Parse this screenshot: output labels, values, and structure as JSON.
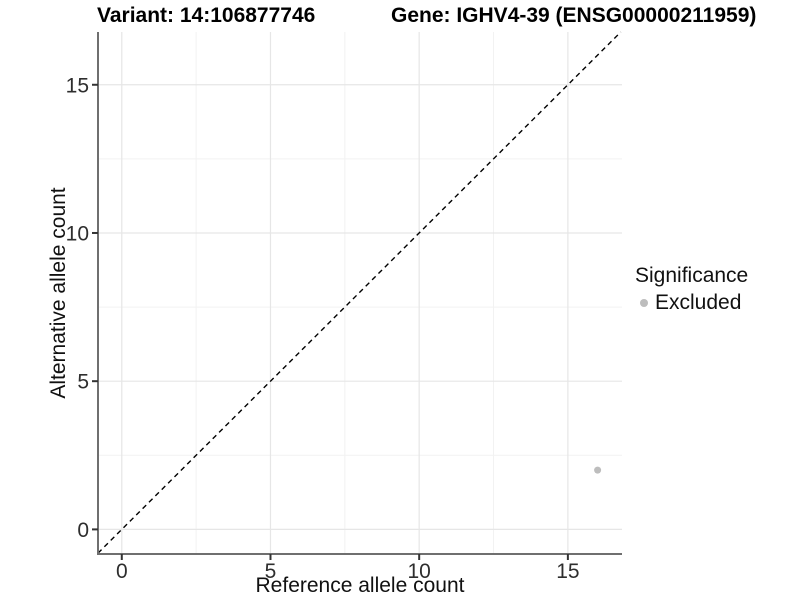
{
  "chart_data": {
    "type": "scatter",
    "title_left": "Variant: 14:106877746",
    "title_right": "Gene: IGHV4-39 (ENSG00000211959)",
    "xlabel": "Reference allele count",
    "ylabel": "Alternative allele count",
    "xticks": [
      0,
      5,
      10,
      15
    ],
    "yticks": [
      0,
      5,
      10,
      15
    ],
    "xticks_minor": [
      2.5,
      7.5,
      12.5
    ],
    "yticks_minor": [
      2.5,
      7.5,
      12.5
    ],
    "xlim": [
      -0.8,
      16.82
    ],
    "ylim": [
      -0.83,
      16.78
    ],
    "grid": "major+minor",
    "identity_line": {
      "style": "dashed",
      "color": "#000000",
      "from": [
        -0.8,
        -0.8
      ],
      "to": [
        16.78,
        16.78
      ]
    },
    "series": [
      {
        "name": "Excluded",
        "color": "#bdbdbd",
        "marker": "circle",
        "points": [
          {
            "x": 16,
            "y": 2
          }
        ]
      }
    ],
    "legend": {
      "title": "Significance",
      "position": "right",
      "items": [
        {
          "label": "Excluded",
          "color": "#bdbdbd",
          "marker": "circle"
        }
      ]
    },
    "colors": {
      "grid_major": "#e6e6e6",
      "grid_minor": "#f2f2f2",
      "axis_line": "#6f6f6f",
      "tick_mark": "#333333",
      "tick_text": "#2e2e2e"
    }
  }
}
